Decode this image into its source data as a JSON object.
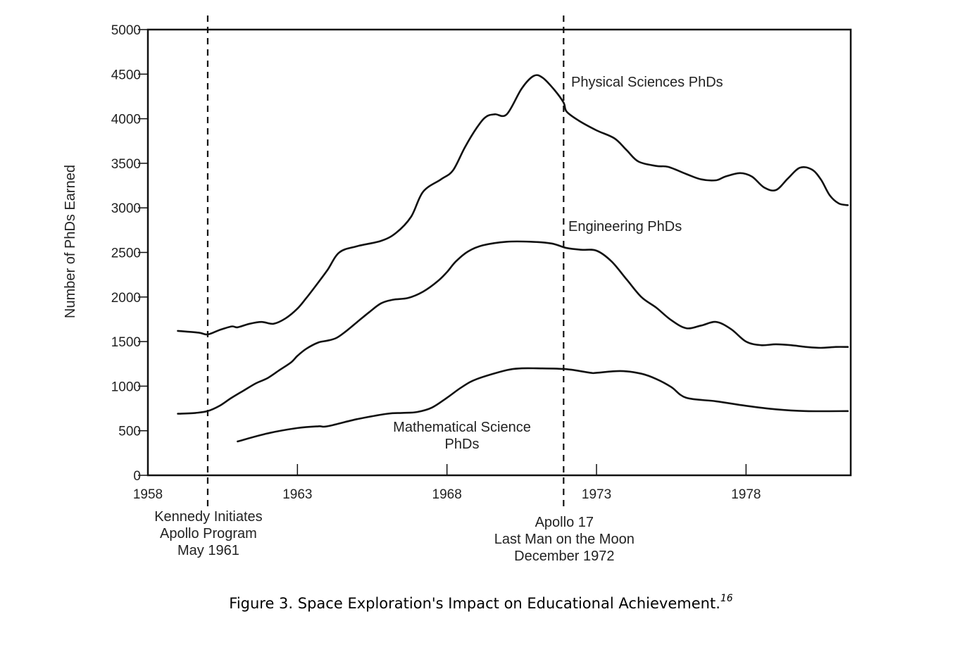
{
  "chart_data": {
    "type": "line",
    "ylabel": "Number of PhDs Earned",
    "xlim": [
      1958,
      1981.5
    ],
    "ylim": [
      0,
      5000
    ],
    "x_ticks": [
      1958,
      1963,
      1968,
      1973,
      1978
    ],
    "y_ticks": [
      0,
      500,
      1000,
      1500,
      2000,
      2500,
      3000,
      3500,
      4000,
      4500,
      5000
    ],
    "grid": false,
    "series": [
      {
        "name": "Physical Sciences PhDs",
        "x": [
          1959.0,
          1959.7,
          1960.0,
          1960.4,
          1960.8,
          1961.0,
          1961.4,
          1961.8,
          1962.2,
          1962.6,
          1963.0,
          1963.3,
          1963.6,
          1964.0,
          1964.4,
          1965.0,
          1965.8,
          1966.3,
          1966.8,
          1967.2,
          1967.8,
          1968.2,
          1968.6,
          1969.0,
          1969.3,
          1969.6,
          1970.0,
          1970.5,
          1970.9,
          1971.2,
          1971.6,
          1971.9,
          1972.0,
          1972.4,
          1973.0,
          1973.6,
          1974.0,
          1974.4,
          1975.0,
          1975.4,
          1976.0,
          1976.5,
          1977.0,
          1977.3,
          1977.8,
          1978.2,
          1978.6,
          1979.0,
          1979.4,
          1979.8,
          1980.2,
          1980.5,
          1980.8,
          1981.1,
          1981.4
        ],
        "y": [
          1620,
          1600,
          1580,
          1630,
          1670,
          1660,
          1700,
          1720,
          1700,
          1760,
          1870,
          1990,
          2120,
          2300,
          2500,
          2570,
          2630,
          2720,
          2900,
          3180,
          3320,
          3420,
          3680,
          3900,
          4020,
          4050,
          4050,
          4340,
          4480,
          4460,
          4320,
          4180,
          4080,
          3980,
          3870,
          3780,
          3650,
          3520,
          3470,
          3460,
          3380,
          3320,
          3310,
          3350,
          3390,
          3350,
          3230,
          3200,
          3330,
          3450,
          3430,
          3320,
          3140,
          3050,
          3030
        ]
      },
      {
        "name": "Engineering PhDs",
        "x": [
          1959.0,
          1959.6,
          1960.0,
          1960.4,
          1960.8,
          1961.2,
          1961.6,
          1962.0,
          1962.4,
          1962.8,
          1963.0,
          1963.3,
          1963.7,
          1964.0,
          1964.3,
          1964.6,
          1965.0,
          1965.4,
          1965.8,
          1966.2,
          1966.7,
          1967.2,
          1967.7,
          1968.0,
          1968.3,
          1968.7,
          1969.2,
          1970.0,
          1970.8,
          1971.5,
          1972.0,
          1972.5,
          1973.0,
          1973.5,
          1974.0,
          1974.5,
          1975.0,
          1975.5,
          1976.0,
          1976.5,
          1977.0,
          1977.5,
          1978.0,
          1978.5,
          1979.0,
          1979.5,
          1980.0,
          1980.5,
          1981.0,
          1981.4
        ],
        "y": [
          690,
          700,
          720,
          780,
          870,
          950,
          1030,
          1090,
          1180,
          1270,
          1340,
          1420,
          1490,
          1510,
          1540,
          1610,
          1720,
          1830,
          1930,
          1970,
          1990,
          2060,
          2180,
          2280,
          2400,
          2510,
          2580,
          2620,
          2620,
          2600,
          2550,
          2530,
          2520,
          2400,
          2200,
          2000,
          1880,
          1740,
          1650,
          1680,
          1720,
          1640,
          1500,
          1460,
          1470,
          1460,
          1440,
          1430,
          1440,
          1440
        ]
      },
      {
        "name": "Mathematical Science PhDs",
        "x": [
          1961.0,
          1962.0,
          1963.0,
          1963.7,
          1964.0,
          1965.0,
          1966.0,
          1966.5,
          1967.0,
          1967.5,
          1968.0,
          1968.5,
          1969.0,
          1970.0,
          1970.5,
          1971.0,
          1972.0,
          1972.8,
          1973.0,
          1973.8,
          1974.5,
          1975.0,
          1975.5,
          1976.0,
          1977.0,
          1978.0,
          1979.0,
          1980.0,
          1981.4
        ],
        "y": [
          380,
          470,
          530,
          550,
          550,
          630,
          690,
          700,
          710,
          760,
          870,
          990,
          1080,
          1180,
          1200,
          1200,
          1190,
          1150,
          1150,
          1170,
          1140,
          1080,
          990,
          870,
          830,
          780,
          740,
          720,
          720
        ]
      }
    ],
    "annotations": [
      {
        "x": 1960.0,
        "lines": [
          "Kennedy Initiates",
          "Apollo Program",
          "May 1961"
        ]
      },
      {
        "x": 1971.9,
        "lines": [
          "Apollo 17",
          "Last Man on the Moon",
          "December 1972"
        ]
      }
    ],
    "series_labels": [
      {
        "lines": [
          "Physical Sciences PhDs"
        ]
      },
      {
        "lines": [
          "Engineering PhDs"
        ]
      },
      {
        "lines": [
          "Mathematical Science",
          "PhDs"
        ]
      }
    ]
  },
  "caption": {
    "text": "Figure 3. Space Exploration's Impact on Educational Achievement.",
    "footnote": "16"
  }
}
